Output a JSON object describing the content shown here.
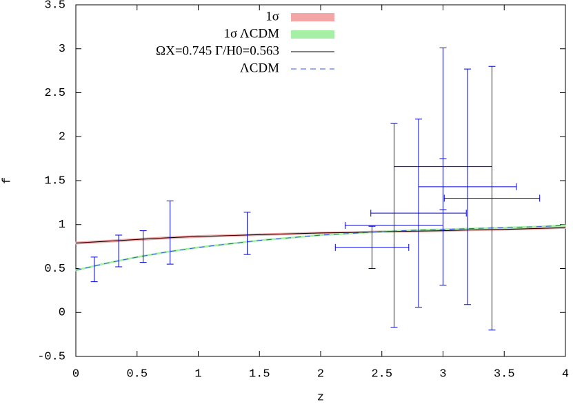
{
  "chart_data": {
    "type": "errorbar",
    "x_label": "z",
    "y_label": "f",
    "xlim": [
      0,
      4
    ],
    "ylim": [
      -0.5,
      3.5
    ],
    "xticks": [
      0,
      0.5,
      1,
      1.5,
      2,
      2.5,
      3,
      3.5,
      4
    ],
    "yticks": [
      -0.5,
      0,
      0.5,
      1,
      1.5,
      2,
      2.5,
      3,
      3.5
    ],
    "legend": "top-center",
    "x": [
      0,
      0.25,
      0.5,
      0.75,
      1,
      1.25,
      1.5,
      1.75,
      2,
      2.25,
      2.5,
      2.75,
      3,
      3.25,
      3.5,
      3.75,
      4
    ],
    "bands": [
      {
        "name": "1σ",
        "color": "#f4a6a6",
        "lower": [
          0.78,
          0.8,
          0.82,
          0.84,
          0.855,
          0.867,
          0.877,
          0.887,
          0.897,
          0.903,
          0.913,
          0.918,
          0.923,
          0.933,
          0.938,
          0.948,
          0.958
        ],
        "upper": [
          0.8,
          0.82,
          0.84,
          0.86,
          0.875,
          0.883,
          0.893,
          0.903,
          0.913,
          0.917,
          0.927,
          0.932,
          0.937,
          0.947,
          0.952,
          0.962,
          0.972
        ]
      },
      {
        "name": "1σ ΛCDM",
        "color": "#a6f0a6",
        "lower": [
          0.475,
          0.555,
          0.625,
          0.685,
          0.735,
          0.775,
          0.815,
          0.845,
          0.875,
          0.895,
          0.915,
          0.93,
          0.94,
          0.95,
          0.96,
          0.97,
          0.985
        ],
        "upper": [
          0.485,
          0.565,
          0.635,
          0.695,
          0.745,
          0.785,
          0.825,
          0.855,
          0.885,
          0.905,
          0.925,
          0.94,
          0.95,
          0.96,
          0.97,
          0.98,
          0.995
        ]
      }
    ],
    "series": [
      {
        "name": "ΩX=0.745  Γ/H0=0.563",
        "color": "#000000",
        "dash": false,
        "values": [
          0.79,
          0.81,
          0.83,
          0.85,
          0.865,
          0.875,
          0.885,
          0.895,
          0.905,
          0.91,
          0.92,
          0.925,
          0.93,
          0.94,
          0.945,
          0.955,
          0.965
        ]
      },
      {
        "name": "ΛCDM",
        "color": "#3355dd",
        "dash": true,
        "values": [
          0.48,
          0.56,
          0.63,
          0.69,
          0.74,
          0.78,
          0.82,
          0.85,
          0.88,
          0.9,
          0.92,
          0.935,
          0.945,
          0.955,
          0.965,
          0.975,
          0.99
        ]
      }
    ],
    "points": {
      "color": "#0000dd",
      "x": [
        0.15,
        0.35,
        0.55,
        0.77,
        1.4,
        2.42,
        2.6,
        2.8,
        3.0,
        3.0,
        3.2,
        3.4
      ],
      "values": [
        0.49,
        0.7,
        0.75,
        0.91,
        0.9,
        0.74,
        0.99,
        1.13,
        1.66,
        1.46,
        1.43,
        1.3
      ],
      "yerr": [
        0.14,
        0.18,
        0.18,
        0.36,
        0.24,
        0.24,
        1.16,
        1.07,
        1.35,
        0.29,
        1.34,
        1.5
      ],
      "xerr": [
        null,
        null,
        null,
        null,
        null,
        0.3,
        0.4,
        0.39,
        0.4,
        null,
        0.4,
        0.39
      ]
    }
  }
}
